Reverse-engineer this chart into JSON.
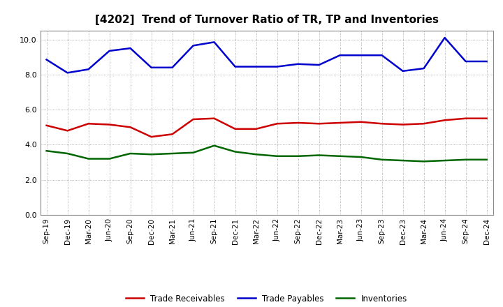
{
  "title": "[4202]  Trend of Turnover Ratio of TR, TP and Inventories",
  "x_labels": [
    "Sep-19",
    "Dec-19",
    "Mar-20",
    "Jun-20",
    "Sep-20",
    "Dec-20",
    "Mar-21",
    "Jun-21",
    "Sep-21",
    "Dec-21",
    "Mar-22",
    "Jun-22",
    "Sep-22",
    "Dec-22",
    "Mar-23",
    "Jun-23",
    "Sep-23",
    "Dec-23",
    "Mar-24",
    "Jun-24",
    "Sep-24",
    "Dec-24"
  ],
  "trade_receivables": [
    5.1,
    4.8,
    5.2,
    5.15,
    5.0,
    4.45,
    4.6,
    5.45,
    5.5,
    4.9,
    4.9,
    5.2,
    5.25,
    5.2,
    5.25,
    5.3,
    5.2,
    5.15,
    5.2,
    5.4,
    5.5,
    5.5
  ],
  "trade_payables": [
    8.85,
    8.1,
    8.3,
    9.35,
    9.5,
    8.4,
    8.4,
    9.65,
    9.85,
    8.45,
    8.45,
    8.45,
    8.6,
    8.55,
    9.1,
    9.1,
    9.1,
    8.2,
    8.35,
    10.1,
    8.75,
    8.75
  ],
  "inventories": [
    3.65,
    3.5,
    3.2,
    3.2,
    3.5,
    3.45,
    3.5,
    3.55,
    3.95,
    3.6,
    3.45,
    3.35,
    3.35,
    3.4,
    3.35,
    3.3,
    3.15,
    3.1,
    3.05,
    3.1,
    3.15,
    3.15
  ],
  "color_tr": "#cc0000",
  "color_tp": "#0000cc",
  "color_inv": "#006600",
  "ylim": [
    0.0,
    10.5
  ],
  "yticks": [
    0.0,
    2.0,
    4.0,
    6.0,
    8.0,
    10.0
  ],
  "background_color": "#ffffff",
  "grid_color": "#999999",
  "legend_tr": "Trade Receivables",
  "legend_tp": "Trade Payables",
  "legend_inv": "Inventories"
}
